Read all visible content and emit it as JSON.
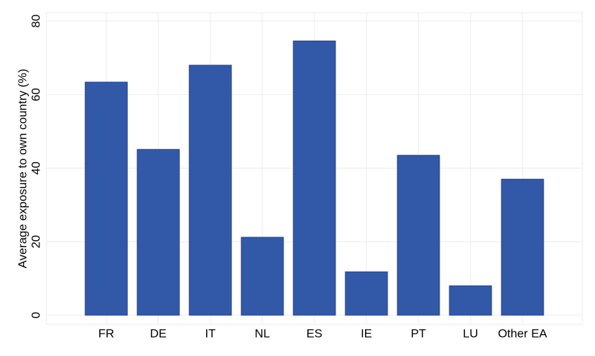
{
  "chart_data": {
    "type": "bar",
    "y_label": "Average exposure to own country (%)",
    "categories": [
      "FR",
      "DE",
      "IT",
      "NL",
      "ES",
      "IE",
      "PT",
      "LU",
      "Other EA"
    ],
    "values": [
      63.4,
      45.1,
      68.0,
      21.2,
      74.6,
      11.8,
      43.5,
      8.0,
      37.0
    ],
    "color": "#3259a8",
    "edge_color": "#1f3f8f",
    "ylim": [
      -2.5,
      82.3
    ],
    "yticks": [
      0,
      20,
      40,
      60,
      80
    ],
    "grid": true
  }
}
